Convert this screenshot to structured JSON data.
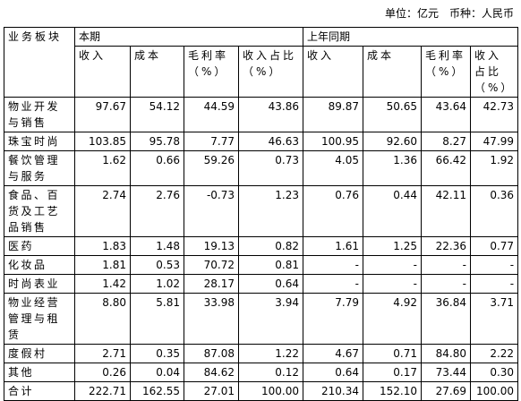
{
  "note": "单位：亿元　币种：人民币",
  "table": {
    "group_header": [
      "业务板块",
      "本期",
      "上年同期"
    ],
    "columns": [
      "收入",
      "成本",
      "毛利率（%）",
      "收入占比（%）",
      "收入",
      "成本",
      "毛利率（%）",
      "收入占比（%）"
    ],
    "rows": [
      [
        "物业开发与销售",
        "97.67",
        "54.12",
        "44.59",
        "43.86",
        "89.87",
        "50.65",
        "43.64",
        "42.73"
      ],
      [
        "珠宝时尚",
        "103.85",
        "95.78",
        "7.77",
        "46.63",
        "100.95",
        "92.60",
        "8.27",
        "47.99"
      ],
      [
        "餐饮管理与服务",
        "1.62",
        "0.66",
        "59.26",
        "0.73",
        "4.05",
        "1.36",
        "66.42",
        "1.92"
      ],
      [
        "食品、百货及工艺品销售",
        "2.74",
        "2.76",
        "-0.73",
        "1.23",
        "0.76",
        "0.44",
        "42.11",
        "0.36"
      ],
      [
        "医药",
        "1.83",
        "1.48",
        "19.13",
        "0.82",
        "1.61",
        "1.25",
        "22.36",
        "0.77"
      ],
      [
        "化妆品",
        "1.81",
        "0.53",
        "70.72",
        "0.81",
        "-",
        "-",
        "-",
        "-"
      ],
      [
        "时尚表业",
        "1.42",
        "1.02",
        "28.17",
        "0.64",
        "-",
        "-",
        "-",
        "-"
      ],
      [
        "物业经营管理与租赁",
        "8.80",
        "5.81",
        "33.98",
        "3.94",
        "7.79",
        "4.92",
        "36.84",
        "3.71"
      ],
      [
        "度假村",
        "2.71",
        "0.35",
        "87.08",
        "1.22",
        "4.67",
        "0.71",
        "84.80",
        "2.22"
      ],
      [
        "其他",
        "0.26",
        "0.04",
        "84.62",
        "0.12",
        "0.64",
        "0.17",
        "73.44",
        "0.30"
      ],
      [
        "合计",
        "222.71",
        "162.55",
        "27.01",
        "100.00",
        "210.34",
        "152.10",
        "27.69",
        "100.00"
      ]
    ]
  }
}
